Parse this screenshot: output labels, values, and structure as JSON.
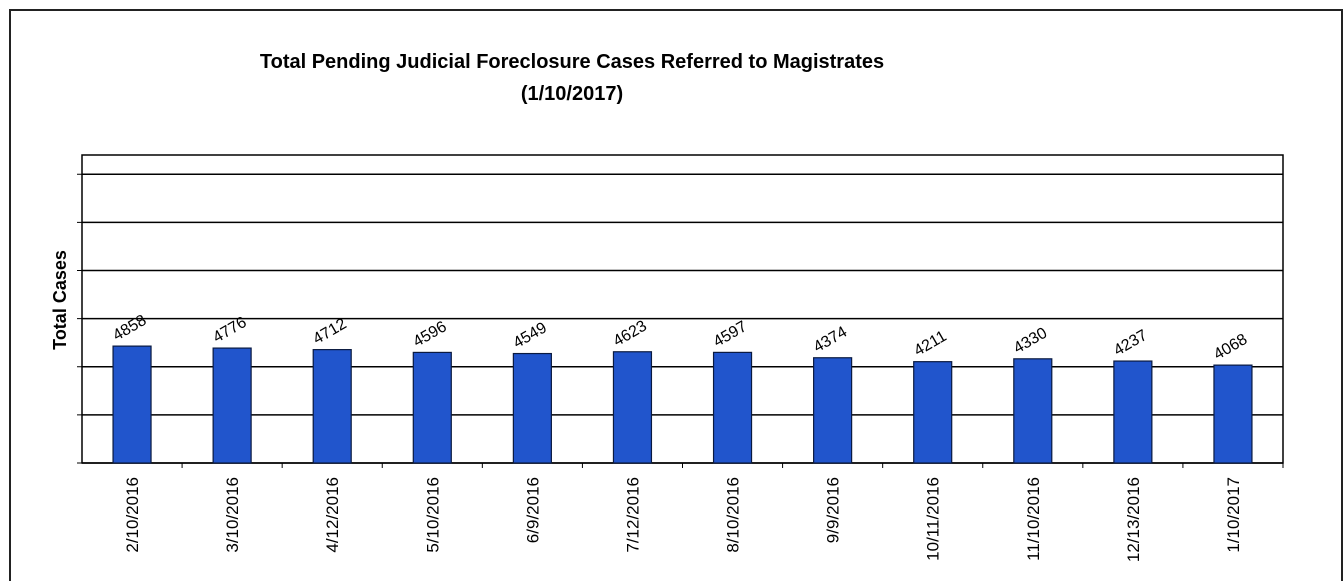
{
  "chart_data": {
    "type": "bar",
    "title": "Total Pending Judicial Foreclosure Cases Referred to Magistrates",
    "subtitle": "(1/10/2017)",
    "y_label": "Total Cases",
    "categories": [
      "2/10/2016",
      "3/10/2016",
      "4/12/2016",
      "5/10/2016",
      "6/9/2016",
      "7/12/2016",
      "8/10/2016",
      "9/9/2016",
      "10/11/2016",
      "11/10/2016",
      "12/13/2016",
      "1/10/2017"
    ],
    "values": [
      4858,
      4776,
      4712,
      4596,
      4549,
      4623,
      4597,
      4374,
      4211,
      4330,
      4237,
      4068
    ],
    "color": "#2155cc",
    "ylim": [
      0,
      12800
    ],
    "yticks": [
      0,
      2000,
      4000,
      6000,
      8000,
      10000,
      12000
    ],
    "grid": true
  }
}
